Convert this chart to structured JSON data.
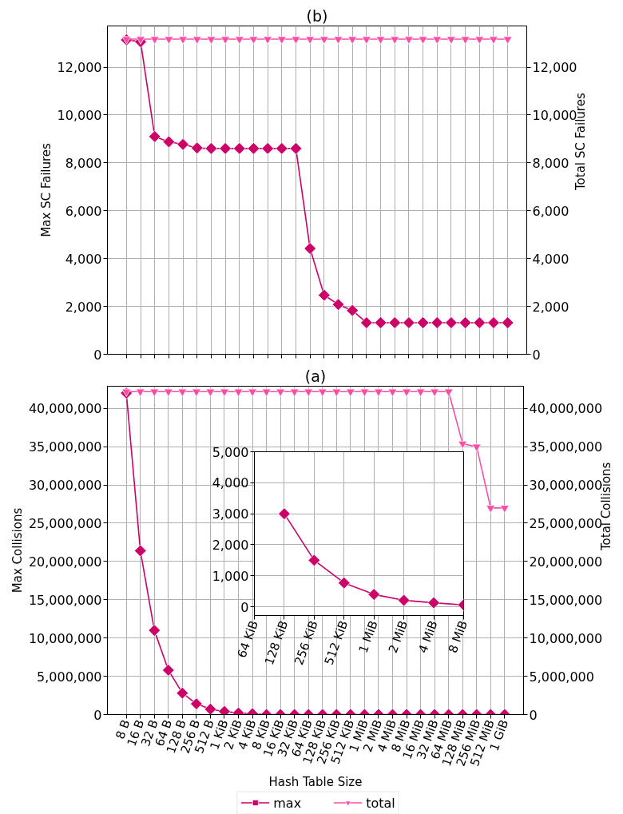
{
  "chart_data": [
    {
      "type": "line",
      "title": "(b)",
      "ylabel": "Max SC Failures",
      "y2label": "Total SC Failures",
      "categories": [
        null,
        null,
        null,
        null,
        null,
        null,
        null,
        null,
        null,
        null,
        null,
        null,
        null,
        null,
        null,
        null,
        null,
        null,
        null,
        null,
        null,
        null,
        null,
        null,
        null,
        null,
        null,
        null
      ],
      "series": [
        {
          "color": "#cc0066",
          "marker": "diamond",
          "values": [
            13140,
            13060,
            9100,
            8880,
            8770,
            8620,
            8600,
            8600,
            8600,
            8600,
            8600,
            8600,
            8600,
            4420,
            2470,
            2080,
            1830,
            1320,
            1320,
            1320,
            1320,
            1320,
            1320,
            1320,
            1320,
            1320,
            1320,
            1320
          ]
        },
        {
          "color": "#ff4da6",
          "marker": "triangle",
          "values": [
            13170,
            13170,
            13170,
            13170,
            13170,
            13170,
            13170,
            13170,
            13170,
            13170,
            13170,
            13170,
            13170,
            13170,
            13170,
            13170,
            13170,
            13170,
            13170,
            13170,
            13170,
            13170,
            13170,
            13170,
            13170,
            13170,
            13170,
            13170
          ]
        }
      ],
      "ylim": [
        0,
        13720
      ],
      "yticks": [
        {
          "value": 0,
          "label": "0"
        },
        {
          "value": 2000,
          "label": "2,000"
        },
        {
          "value": 4000,
          "label": "4,000"
        },
        {
          "value": 6000,
          "label": "6,000"
        },
        {
          "value": 8000,
          "label": "8,000"
        },
        {
          "value": 10000,
          "label": "10,000"
        },
        {
          "value": 12000,
          "label": "12,000"
        }
      ],
      "y2lim": [
        0,
        13720
      ],
      "y2ticks": [
        {
          "value": 0,
          "label": "0"
        },
        {
          "value": 2000,
          "label": "2,000"
        },
        {
          "value": 4000,
          "label": "4,000"
        },
        {
          "value": 6000,
          "label": "6,000"
        },
        {
          "value": 8000,
          "label": "8,000"
        },
        {
          "value": 10000,
          "label": "10,000"
        },
        {
          "value": 12000,
          "label": "12,000"
        }
      ],
      "grid": true
    },
    {
      "type": "line",
      "title": "(a)",
      "xlabel": "Hash Table Size",
      "ylabel": "Max Collisions",
      "y2label": "Total Collisions",
      "categories": [
        "8 B",
        "16 B",
        "32 B",
        "64 B",
        "128 B",
        "256 B",
        "512 B",
        "1 KiB",
        "2 KiB",
        "4 KiB",
        "8 KiB",
        "16 KiB",
        "32 KiB",
        "64 KiB",
        "128 KiB",
        "256 KiB",
        "512 KiB",
        "1 MiB",
        "2 MiB",
        "4 MiB",
        "8 MiB",
        "16 MiB",
        "32 MiB",
        "64 MiB",
        "128 MiB",
        "256 MiB",
        "512 MiB",
        "1 GiB"
      ],
      "series": [
        {
          "name": "max",
          "color": "#cc0066",
          "marker": "diamond",
          "values": [
            42000000,
            21400000,
            11000000,
            5800000,
            2800000,
            1400000,
            700000,
            400000,
            200000,
            100000,
            0,
            0,
            0,
            0,
            0,
            0,
            0,
            0,
            0,
            0,
            0,
            0,
            0,
            0,
            0,
            0,
            0,
            0
          ]
        },
        {
          "name": "total",
          "color": "#ff4da6",
          "marker": "triangle",
          "values": [
            42200000,
            42200000,
            42200000,
            42200000,
            42200000,
            42200000,
            42200000,
            42200000,
            42200000,
            42200000,
            42200000,
            42200000,
            42200000,
            42200000,
            42200000,
            42200000,
            42200000,
            42200000,
            42200000,
            42200000,
            42200000,
            42200000,
            42200000,
            42200000,
            35400000,
            35000000,
            27000000,
            27000000
          ]
        }
      ],
      "ylim": [
        0,
        42900000
      ],
      "yticks": [
        {
          "value": 0,
          "label": "0"
        },
        {
          "value": 5000000,
          "label": "5,000,000"
        },
        {
          "value": 10000000,
          "label": "10,000,000"
        },
        {
          "value": 15000000,
          "label": "15,000,000"
        },
        {
          "value": 20000000,
          "label": "20,000,000"
        },
        {
          "value": 25000000,
          "label": "25,000,000"
        },
        {
          "value": 30000000,
          "label": "30,000,000"
        },
        {
          "value": 35000000,
          "label": "35,000,000"
        },
        {
          "value": 40000000,
          "label": "40,000,000"
        }
      ],
      "y2lim": [
        0,
        42900000
      ],
      "y2ticks": [
        {
          "value": 0,
          "label": "0"
        },
        {
          "value": 5000000,
          "label": "5,000,000"
        },
        {
          "value": 10000000,
          "label": "10,000,000"
        },
        {
          "value": 15000000,
          "label": "15,000,000"
        },
        {
          "value": 20000000,
          "label": "20,000,000"
        },
        {
          "value": 25000000,
          "label": "25,000,000"
        },
        {
          "value": 30000000,
          "label": "30,000,000"
        },
        {
          "value": 35000000,
          "label": "35,000,000"
        },
        {
          "value": 40000000,
          "label": "40,000,000"
        }
      ],
      "grid": true,
      "legend": "bottom"
    },
    {
      "type": "line",
      "categories": [
        "64 KiB",
        "128 KiB",
        "256 KiB",
        "512 KiB",
        "1 MiB",
        "2 MiB",
        "4 MiB",
        "8 MiB"
      ],
      "series": [
        {
          "color": "#cc0066",
          "marker": "diamond",
          "values": [
            null,
            3000,
            1500,
            770,
            400,
            210,
            130,
            60
          ]
        }
      ],
      "ylim": [
        -280,
        5000
      ],
      "yticks": [
        {
          "value": 0,
          "label": "0"
        },
        {
          "value": 1000,
          "label": "1,000"
        },
        {
          "value": 2000,
          "label": "2,000"
        },
        {
          "value": 3000,
          "label": "3,000"
        },
        {
          "value": 4000,
          "label": "4,000"
        },
        {
          "value": 5000,
          "label": "5,000"
        }
      ],
      "grid": true
    }
  ]
}
